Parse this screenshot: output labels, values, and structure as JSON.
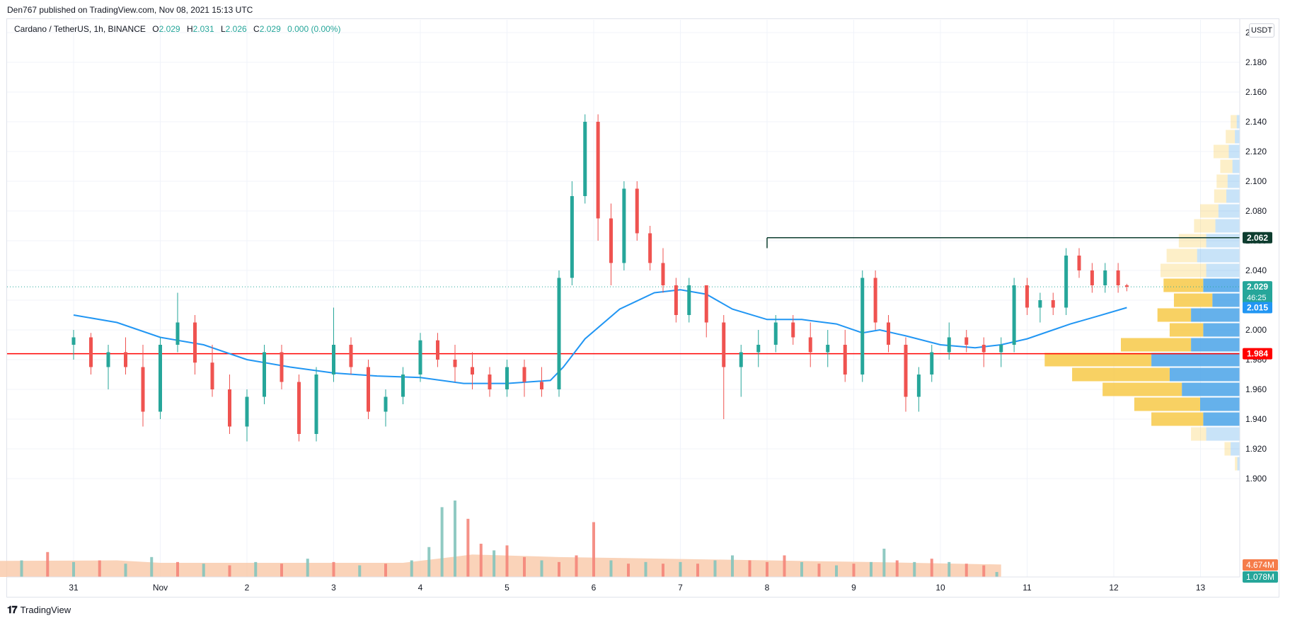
{
  "publisher": "Den767 published on TradingView.com, Nov 08, 2021 15:13 UTC",
  "legend": {
    "symbol": "Cardano / TetherUS, 1h, BINANCE",
    "open_label": "O",
    "open": "2.029",
    "high_label": "H",
    "high": "2.031",
    "low_label": "L",
    "low": "2.026",
    "close_label": "C",
    "close": "2.029",
    "change": "0.000 (0.00%)"
  },
  "currency": "USDT",
  "footer": {
    "brand": "TradingView",
    "logo": "tv-logo-icon"
  },
  "colors": {
    "up": "#26a69a",
    "down": "#ef5350",
    "ma": "#2196f3",
    "support": "#ff0000",
    "resistance": "#0e3d2f",
    "vp_up": "#f7c948",
    "vp_down": "#4aa3e8",
    "vol_up": "#84c4bd",
    "vol_down": "#f4857a",
    "vol_ma": "#f9c8a8"
  },
  "chart_data": {
    "type": "candlestick",
    "title": "Cardano / TetherUS, 1h, BINANCE",
    "y_axis": {
      "range": [
        1.89,
        2.21
      ],
      "ticks": [
        "2.200",
        "2.180",
        "2.160",
        "2.140",
        "2.120",
        "2.100",
        "2.080",
        "2.060",
        "2.040",
        "2.020",
        "2.000",
        "1.980",
        "1.960",
        "1.940",
        "1.920",
        "1.900"
      ]
    },
    "x_axis": {
      "labels": [
        "31",
        "Nov",
        "2",
        "3",
        "4",
        "5",
        "6",
        "7",
        "8",
        "9",
        "10",
        "11",
        "12",
        "13"
      ]
    },
    "price_labels": [
      {
        "value": 2.062,
        "text": "2.062",
        "color": "#0e3d2f"
      },
      {
        "value": 2.029,
        "text": "2.029",
        "sub": "46:25",
        "color": "#26a69a"
      },
      {
        "value": 2.015,
        "text": "2.015",
        "color": "#2196f3"
      },
      {
        "value": 1.984,
        "text": "1.984",
        "color": "#ff0000"
      }
    ],
    "volume_labels": [
      {
        "text": "4.674M",
        "color": "#f57c4a"
      },
      {
        "text": "1.078M",
        "color": "#26a69a"
      }
    ],
    "horizontal_lines": [
      {
        "name": "support",
        "value": 1.984
      },
      {
        "name": "resistance",
        "value": 2.062,
        "from_day": 8.0
      }
    ],
    "moving_average": [
      [
        29.5,
        2.01
      ],
      [
        30.0,
        2.005
      ],
      [
        30.5,
        1.995
      ],
      [
        31.0,
        1.99
      ],
      [
        31.5,
        1.98
      ],
      [
        32.0,
        1.975
      ],
      [
        32.5,
        1.971
      ],
      [
        33.0,
        1.969
      ],
      [
        33.5,
        1.968
      ],
      [
        34.0,
        1.964
      ],
      [
        34.5,
        1.964
      ],
      [
        35.0,
        1.966
      ],
      [
        35.15,
        1.975
      ],
      [
        35.4,
        1.994
      ],
      [
        35.8,
        2.014
      ],
      [
        36.2,
        2.025
      ],
      [
        36.5,
        2.027
      ],
      [
        36.8,
        2.024
      ],
      [
        37.1,
        2.014
      ],
      [
        37.5,
        2.007
      ],
      [
        37.9,
        2.007
      ],
      [
        38.3,
        2.004
      ],
      [
        38.6,
        1.998
      ],
      [
        38.8,
        2.0
      ],
      [
        39.1,
        1.996
      ],
      [
        39.5,
        1.99
      ],
      [
        39.9,
        1.988
      ],
      [
        40.2,
        1.99
      ],
      [
        40.5,
        1.994
      ],
      [
        40.8,
        2.0
      ],
      [
        41.0,
        2.004
      ],
      [
        41.3,
        2.009
      ],
      [
        41.65,
        2.015
      ]
    ],
    "candles": [
      [
        29.5,
        1.99,
        2.0,
        1.98,
        1.995
      ],
      [
        29.7,
        1.995,
        1.998,
        1.97,
        1.975
      ],
      [
        29.9,
        1.975,
        1.99,
        1.96,
        1.985
      ],
      [
        30.1,
        1.985,
        1.995,
        1.97,
        1.975
      ],
      [
        30.3,
        1.975,
        1.99,
        1.935,
        1.945
      ],
      [
        30.5,
        1.945,
        1.995,
        1.94,
        1.99
      ],
      [
        30.7,
        1.99,
        2.025,
        1.985,
        2.005
      ],
      [
        30.9,
        2.005,
        2.01,
        1.97,
        1.978
      ],
      [
        31.1,
        1.978,
        1.99,
        1.955,
        1.96
      ],
      [
        31.3,
        1.96,
        1.97,
        1.93,
        1.935
      ],
      [
        31.5,
        1.935,
        1.96,
        1.925,
        1.955
      ],
      [
        31.7,
        1.955,
        1.99,
        1.95,
        1.985
      ],
      [
        31.9,
        1.985,
        1.99,
        1.96,
        1.965
      ],
      [
        32.1,
        1.965,
        1.97,
        1.925,
        1.93
      ],
      [
        32.3,
        1.93,
        1.975,
        1.925,
        1.97
      ],
      [
        32.5,
        1.97,
        2.015,
        1.965,
        1.99
      ],
      [
        32.7,
        1.99,
        1.995,
        1.97,
        1.975
      ],
      [
        32.9,
        1.975,
        1.98,
        1.94,
        1.945
      ],
      [
        33.1,
        1.945,
        1.96,
        1.935,
        1.955
      ],
      [
        33.3,
        1.955,
        1.975,
        1.95,
        1.97
      ],
      [
        33.5,
        1.97,
        1.998,
        1.965,
        1.993
      ],
      [
        33.7,
        1.993,
        1.998,
        1.975,
        1.98
      ],
      [
        33.9,
        1.98,
        1.99,
        1.965,
        1.975
      ],
      [
        34.1,
        1.975,
        1.985,
        1.96,
        1.97
      ],
      [
        34.3,
        1.97,
        1.975,
        1.955,
        1.96
      ],
      [
        34.5,
        1.96,
        1.98,
        1.955,
        1.975
      ],
      [
        34.7,
        1.975,
        1.98,
        1.955,
        1.965
      ],
      [
        34.9,
        1.965,
        1.975,
        1.955,
        1.96
      ],
      [
        35.1,
        1.96,
        2.04,
        1.955,
        2.035
      ],
      [
        35.25,
        2.035,
        2.1,
        2.03,
        2.09
      ],
      [
        35.4,
        2.09,
        2.145,
        2.085,
        2.14
      ],
      [
        35.55,
        2.14,
        2.145,
        2.06,
        2.075
      ],
      [
        35.7,
        2.075,
        2.085,
        2.03,
        2.045
      ],
      [
        35.85,
        2.045,
        2.1,
        2.04,
        2.095
      ],
      [
        36.0,
        2.095,
        2.1,
        2.06,
        2.065
      ],
      [
        36.15,
        2.065,
        2.07,
        2.04,
        2.045
      ],
      [
        36.3,
        2.045,
        2.055,
        2.025,
        2.03
      ],
      [
        36.45,
        2.03,
        2.035,
        2.005,
        2.01
      ],
      [
        36.6,
        2.01,
        2.035,
        2.005,
        2.03
      ],
      [
        36.8,
        2.03,
        2.03,
        1.995,
        2.005
      ],
      [
        37.0,
        2.005,
        2.01,
        1.94,
        1.975
      ],
      [
        37.2,
        1.975,
        1.99,
        1.955,
        1.985
      ],
      [
        37.4,
        1.985,
        2.0,
        1.975,
        1.99
      ],
      [
        37.6,
        1.99,
        2.01,
        1.985,
        2.005
      ],
      [
        37.8,
        2.005,
        2.01,
        1.99,
        1.995
      ],
      [
        38.0,
        1.995,
        2.005,
        1.975,
        1.985
      ],
      [
        38.2,
        1.985,
        2.0,
        1.975,
        1.99
      ],
      [
        38.4,
        1.99,
        2.0,
        1.965,
        1.97
      ],
      [
        38.6,
        1.97,
        2.04,
        1.965,
        2.035
      ],
      [
        38.75,
        2.035,
        2.04,
        2.0,
        2.005
      ],
      [
        38.9,
        2.005,
        2.01,
        1.985,
        1.99
      ],
      [
        39.1,
        1.99,
        1.995,
        1.945,
        1.955
      ],
      [
        39.25,
        1.955,
        1.975,
        1.945,
        1.97
      ],
      [
        39.4,
        1.97,
        1.99,
        1.965,
        1.985
      ],
      [
        39.6,
        1.985,
        2.005,
        1.98,
        1.995
      ],
      [
        39.8,
        1.995,
        2.0,
        1.985,
        1.99
      ],
      [
        40.0,
        1.99,
        1.995,
        1.975,
        1.985
      ],
      [
        40.2,
        1.985,
        1.995,
        1.975,
        1.99
      ],
      [
        40.35,
        1.99,
        2.035,
        1.985,
        2.03
      ],
      [
        40.5,
        2.03,
        2.035,
        2.01,
        2.015
      ],
      [
        40.65,
        2.015,
        2.025,
        2.005,
        2.02
      ],
      [
        40.8,
        2.02,
        2.025,
        2.01,
        2.015
      ],
      [
        40.95,
        2.015,
        2.055,
        2.01,
        2.05
      ],
      [
        41.1,
        2.05,
        2.055,
        2.035,
        2.04
      ],
      [
        41.25,
        2.04,
        2.045,
        2.025,
        2.03
      ],
      [
        41.4,
        2.03,
        2.045,
        2.025,
        2.04
      ],
      [
        41.55,
        2.04,
        2.045,
        2.025,
        2.03
      ],
      [
        41.65,
        2.03,
        2.031,
        2.026,
        2.029
      ]
    ],
    "volume": [
      [
        29.5,
        0.8,
        "d"
      ],
      [
        29.8,
        0.7,
        "u"
      ],
      [
        30.1,
        0.9,
        "d"
      ],
      [
        30.4,
        1.0,
        "u"
      ],
      [
        30.7,
        1.5,
        "d"
      ],
      [
        31.0,
        0.9,
        "u"
      ],
      [
        31.3,
        1.0,
        "d"
      ],
      [
        31.6,
        0.8,
        "u"
      ],
      [
        31.9,
        1.2,
        "u"
      ],
      [
        32.2,
        0.9,
        "d"
      ],
      [
        32.5,
        0.8,
        "u"
      ],
      [
        32.8,
        0.7,
        "d"
      ],
      [
        33.1,
        0.9,
        "u"
      ],
      [
        33.4,
        0.8,
        "d"
      ],
      [
        33.7,
        1.1,
        "u"
      ],
      [
        34.0,
        0.9,
        "d"
      ],
      [
        34.3,
        0.7,
        "u"
      ],
      [
        34.6,
        0.8,
        "d"
      ],
      [
        34.9,
        1.0,
        "u"
      ],
      [
        35.1,
        1.8,
        "u"
      ],
      [
        35.25,
        4.2,
        "u"
      ],
      [
        35.4,
        4.6,
        "u"
      ],
      [
        35.55,
        3.5,
        "d"
      ],
      [
        35.7,
        2.0,
        "d"
      ],
      [
        35.85,
        1.6,
        "u"
      ],
      [
        36.0,
        1.9,
        "d"
      ],
      [
        36.2,
        1.2,
        "d"
      ],
      [
        36.4,
        1.0,
        "u"
      ],
      [
        36.6,
        0.9,
        "d"
      ],
      [
        36.8,
        1.3,
        "d"
      ],
      [
        37.0,
        3.3,
        "d"
      ],
      [
        37.2,
        1.0,
        "u"
      ],
      [
        37.4,
        0.8,
        "d"
      ],
      [
        37.6,
        0.9,
        "u"
      ],
      [
        37.8,
        0.8,
        "d"
      ],
      [
        38.0,
        0.9,
        "u"
      ],
      [
        38.2,
        0.8,
        "d"
      ],
      [
        38.4,
        1.0,
        "u"
      ],
      [
        38.6,
        1.3,
        "u"
      ],
      [
        38.8,
        1.0,
        "d"
      ],
      [
        39.0,
        0.9,
        "d"
      ],
      [
        39.2,
        1.3,
        "d"
      ],
      [
        39.4,
        0.9,
        "u"
      ],
      [
        39.6,
        0.8,
        "d"
      ],
      [
        39.8,
        0.7,
        "u"
      ],
      [
        40.0,
        0.8,
        "d"
      ],
      [
        40.2,
        0.9,
        "u"
      ],
      [
        40.35,
        1.7,
        "u"
      ],
      [
        40.5,
        1.0,
        "d"
      ],
      [
        40.7,
        0.9,
        "u"
      ],
      [
        40.9,
        1.1,
        "d"
      ],
      [
        41.1,
        0.9,
        "u"
      ],
      [
        41.3,
        0.8,
        "d"
      ],
      [
        41.5,
        0.7,
        "d"
      ],
      [
        41.65,
        0.3,
        "u"
      ]
    ],
    "volume_profile": [
      [
        2.14,
        0.01,
        0.005
      ],
      [
        2.13,
        0.015,
        0.008
      ],
      [
        2.12,
        0.025,
        0.018
      ],
      [
        2.11,
        0.02,
        0.012
      ],
      [
        2.1,
        0.018,
        0.02
      ],
      [
        2.09,
        0.02,
        0.022
      ],
      [
        2.08,
        0.03,
        0.035
      ],
      [
        2.07,
        0.035,
        0.04
      ],
      [
        2.06,
        0.045,
        0.055
      ],
      [
        2.05,
        0.05,
        0.07
      ],
      [
        2.04,
        0.075,
        0.055
      ],
      [
        2.03,
        0.065,
        0.06
      ],
      [
        2.02,
        0.063,
        0.045
      ],
      [
        2.01,
        0.055,
        0.08
      ],
      [
        2.0,
        0.055,
        0.06
      ],
      [
        1.99,
        0.115,
        0.08
      ],
      [
        1.98,
        0.175,
        0.145
      ],
      [
        1.97,
        0.16,
        0.115
      ],
      [
        1.96,
        0.13,
        0.095
      ],
      [
        1.95,
        0.108,
        0.065
      ],
      [
        1.94,
        0.085,
        0.06
      ],
      [
        1.93,
        0.025,
        0.055
      ],
      [
        1.92,
        0.01,
        0.015
      ],
      [
        1.91,
        0.004,
        0.004
      ]
    ]
  }
}
